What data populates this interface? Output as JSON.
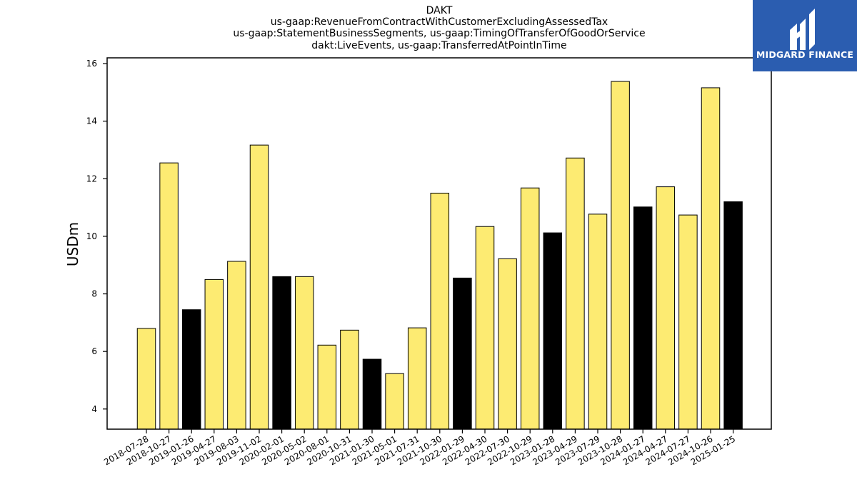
{
  "title_lines": [
    "DAKT",
    "us-gaap:RevenueFromContractWithCustomerExcludingAssessedTax",
    "us-gaap:StatementBusinessSegments, us-gaap:TimingOfTransferOfGoodOrService",
    "dakt:LiveEvents, us-gaap:TransferredAtPointInTime"
  ],
  "logo": {
    "text": "MIDGARD FINANCE",
    "background": "#2b5db0"
  },
  "colors": {
    "regular": "#fdeb72",
    "highlight": "#000000",
    "edge": "#000000"
  },
  "chart_data": {
    "type": "bar",
    "title": "DAKT",
    "xlabel": "",
    "ylabel": "USDm",
    "ylim": [
      3.3,
      16.2
    ],
    "yticks": [
      4,
      6,
      8,
      10,
      12,
      14,
      16
    ],
    "grid": false,
    "categories": [
      "2018-07-28",
      "2018-10-27",
      "2019-01-26",
      "2019-04-27",
      "2019-08-03",
      "2019-11-02",
      "2020-02-01",
      "2020-05-02",
      "2020-08-01",
      "2020-10-31",
      "2021-01-30",
      "2021-05-01",
      "2021-07-31",
      "2021-10-30",
      "2022-01-29",
      "2022-04-30",
      "2022-07-30",
      "2022-10-29",
      "2023-01-28",
      "2023-04-29",
      "2023-07-29",
      "2023-10-28",
      "2024-01-27",
      "2024-04-27",
      "2024-07-27",
      "2024-10-26",
      "2025-01-25"
    ],
    "values": [
      6.8,
      12.55,
      7.45,
      8.5,
      9.13,
      13.17,
      8.6,
      8.6,
      6.22,
      6.74,
      5.73,
      5.23,
      6.82,
      11.5,
      8.55,
      10.34,
      9.22,
      11.68,
      10.12,
      12.72,
      10.77,
      15.38,
      11.02,
      11.72,
      10.74,
      15.16,
      11.2
    ],
    "highlight": [
      false,
      false,
      true,
      false,
      false,
      false,
      true,
      false,
      false,
      false,
      true,
      false,
      false,
      false,
      true,
      false,
      false,
      false,
      true,
      false,
      false,
      false,
      true,
      false,
      false,
      false,
      true
    ]
  }
}
